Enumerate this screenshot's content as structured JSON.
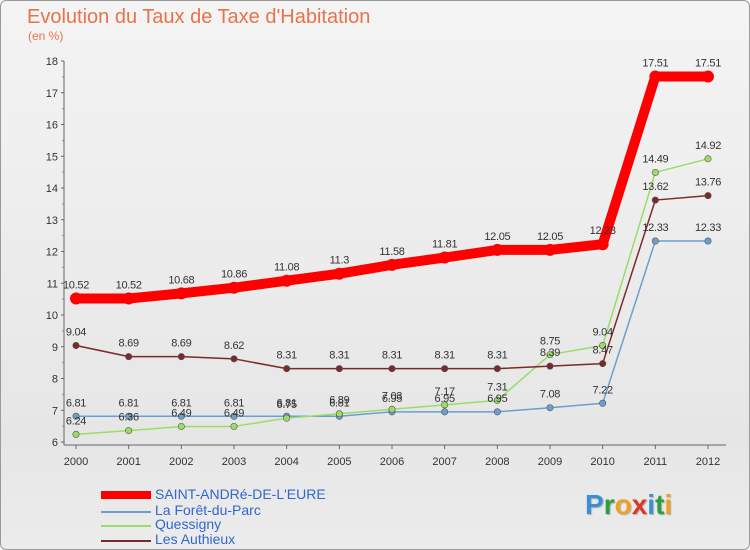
{
  "header": {
    "title": "Evolution du Taux de Taxe d'Habitation",
    "subtitle": "(en %)"
  },
  "chart_data": {
    "type": "line",
    "title": "Evolution du Taux de Taxe d'Habitation",
    "ylabel": "(en %)",
    "xlabel": "",
    "x": [
      "2000",
      "2001",
      "2002",
      "2003",
      "2004",
      "2005",
      "2006",
      "2007",
      "2008",
      "2009",
      "2010",
      "2011",
      "2012"
    ],
    "ylim": [
      6,
      18
    ],
    "yticks": [
      "6",
      "7",
      "8",
      "9",
      "10",
      "11",
      "12",
      "13",
      "14",
      "15",
      "16",
      "17",
      "18"
    ],
    "grid": false,
    "legend": "bottom-left",
    "series": [
      {
        "name": "SAINT-ANDRé-DE-L'EURE",
        "color": "#ff0000",
        "values": [
          10.52,
          10.52,
          10.68,
          10.86,
          11.08,
          11.3,
          11.58,
          11.81,
          12.05,
          12.05,
          12.23,
          17.51,
          17.51
        ],
        "labels": [
          "10.52",
          "10.52",
          "10.68",
          "10.86",
          "11.08",
          "11.3",
          "11.58",
          "11.81",
          "12.05",
          "12.05",
          "12.23",
          "17.51",
          "17.51"
        ]
      },
      {
        "name": "La Forêt-du-Parc",
        "color": "#6a9fd0",
        "values": [
          6.81,
          6.81,
          6.81,
          6.81,
          6.81,
          6.81,
          6.95,
          6.95,
          6.95,
          7.08,
          7.22,
          12.33,
          12.33
        ],
        "labels": [
          "6.81",
          "6.81",
          "6.81",
          "6.81",
          "6.81",
          "6.81",
          "6.95",
          "6.95",
          "6.95",
          "7.08",
          "7.22",
          "12.33",
          "12.33"
        ]
      },
      {
        "name": "Quessigny",
        "color": "#99dd66",
        "values": [
          6.24,
          6.36,
          6.49,
          6.49,
          6.75,
          6.89,
          7.03,
          7.17,
          7.31,
          8.75,
          9.04,
          14.49,
          14.92
        ],
        "labels": [
          "6.24",
          "6.36",
          "6.49",
          "6.49",
          "6.75",
          "6.89",
          "7.03",
          "7.17",
          "7.31",
          "8.75",
          "9.04",
          "14.49",
          "14.92"
        ]
      },
      {
        "name": "Les Authieux",
        "color": "#7a2a2a",
        "values": [
          9.04,
          8.69,
          8.69,
          8.62,
          8.31,
          8.31,
          8.31,
          8.31,
          8.31,
          8.39,
          8.47,
          13.62,
          13.76
        ],
        "labels": [
          "9.04",
          "8.69",
          "8.69",
          "8.62",
          "8.31",
          "8.31",
          "8.31",
          "8.31",
          "8.31",
          "8.39",
          "8.47",
          "13.62",
          "13.76"
        ]
      }
    ]
  },
  "legend": {
    "items": [
      {
        "label": "SAINT-ANDRé-DE-L'EURE",
        "color": "#ff0000"
      },
      {
        "label": "La Forêt-du-Parc",
        "color": "#6a9fd0"
      },
      {
        "label": "Quessigny",
        "color": "#99dd66"
      },
      {
        "label": "Les Authieux",
        "color": "#7a2a2a"
      }
    ]
  },
  "logo": {
    "letters": [
      {
        "ch": "P",
        "color": "#3a8fd6"
      },
      {
        "ch": "r",
        "color": "#2e9e3e"
      },
      {
        "ch": "o",
        "color": "#f0a020"
      },
      {
        "ch": "x",
        "color": "#d83a2a"
      },
      {
        "ch": "i",
        "color": "#3a8fd6"
      },
      {
        "ch": "t",
        "color": "#2e9e3e"
      },
      {
        "ch": "i",
        "color": "#f0a020"
      }
    ]
  }
}
